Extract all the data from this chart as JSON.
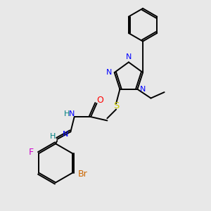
{
  "bg_color": "#e8e8e8",
  "bond_color": "#000000",
  "atom_colors": {
    "N": "#0000ff",
    "O": "#ff0000",
    "S": "#cccc00",
    "F": "#cc00cc",
    "Br": "#cc6600",
    "H": "#008080",
    "C": "#000000"
  },
  "line_width": 1.4,
  "font_size": 8.5,
  "figsize": [
    3.0,
    3.0
  ],
  "dpi": 100,
  "xlim": [
    20,
    300
  ],
  "ylim": [
    10,
    290
  ]
}
